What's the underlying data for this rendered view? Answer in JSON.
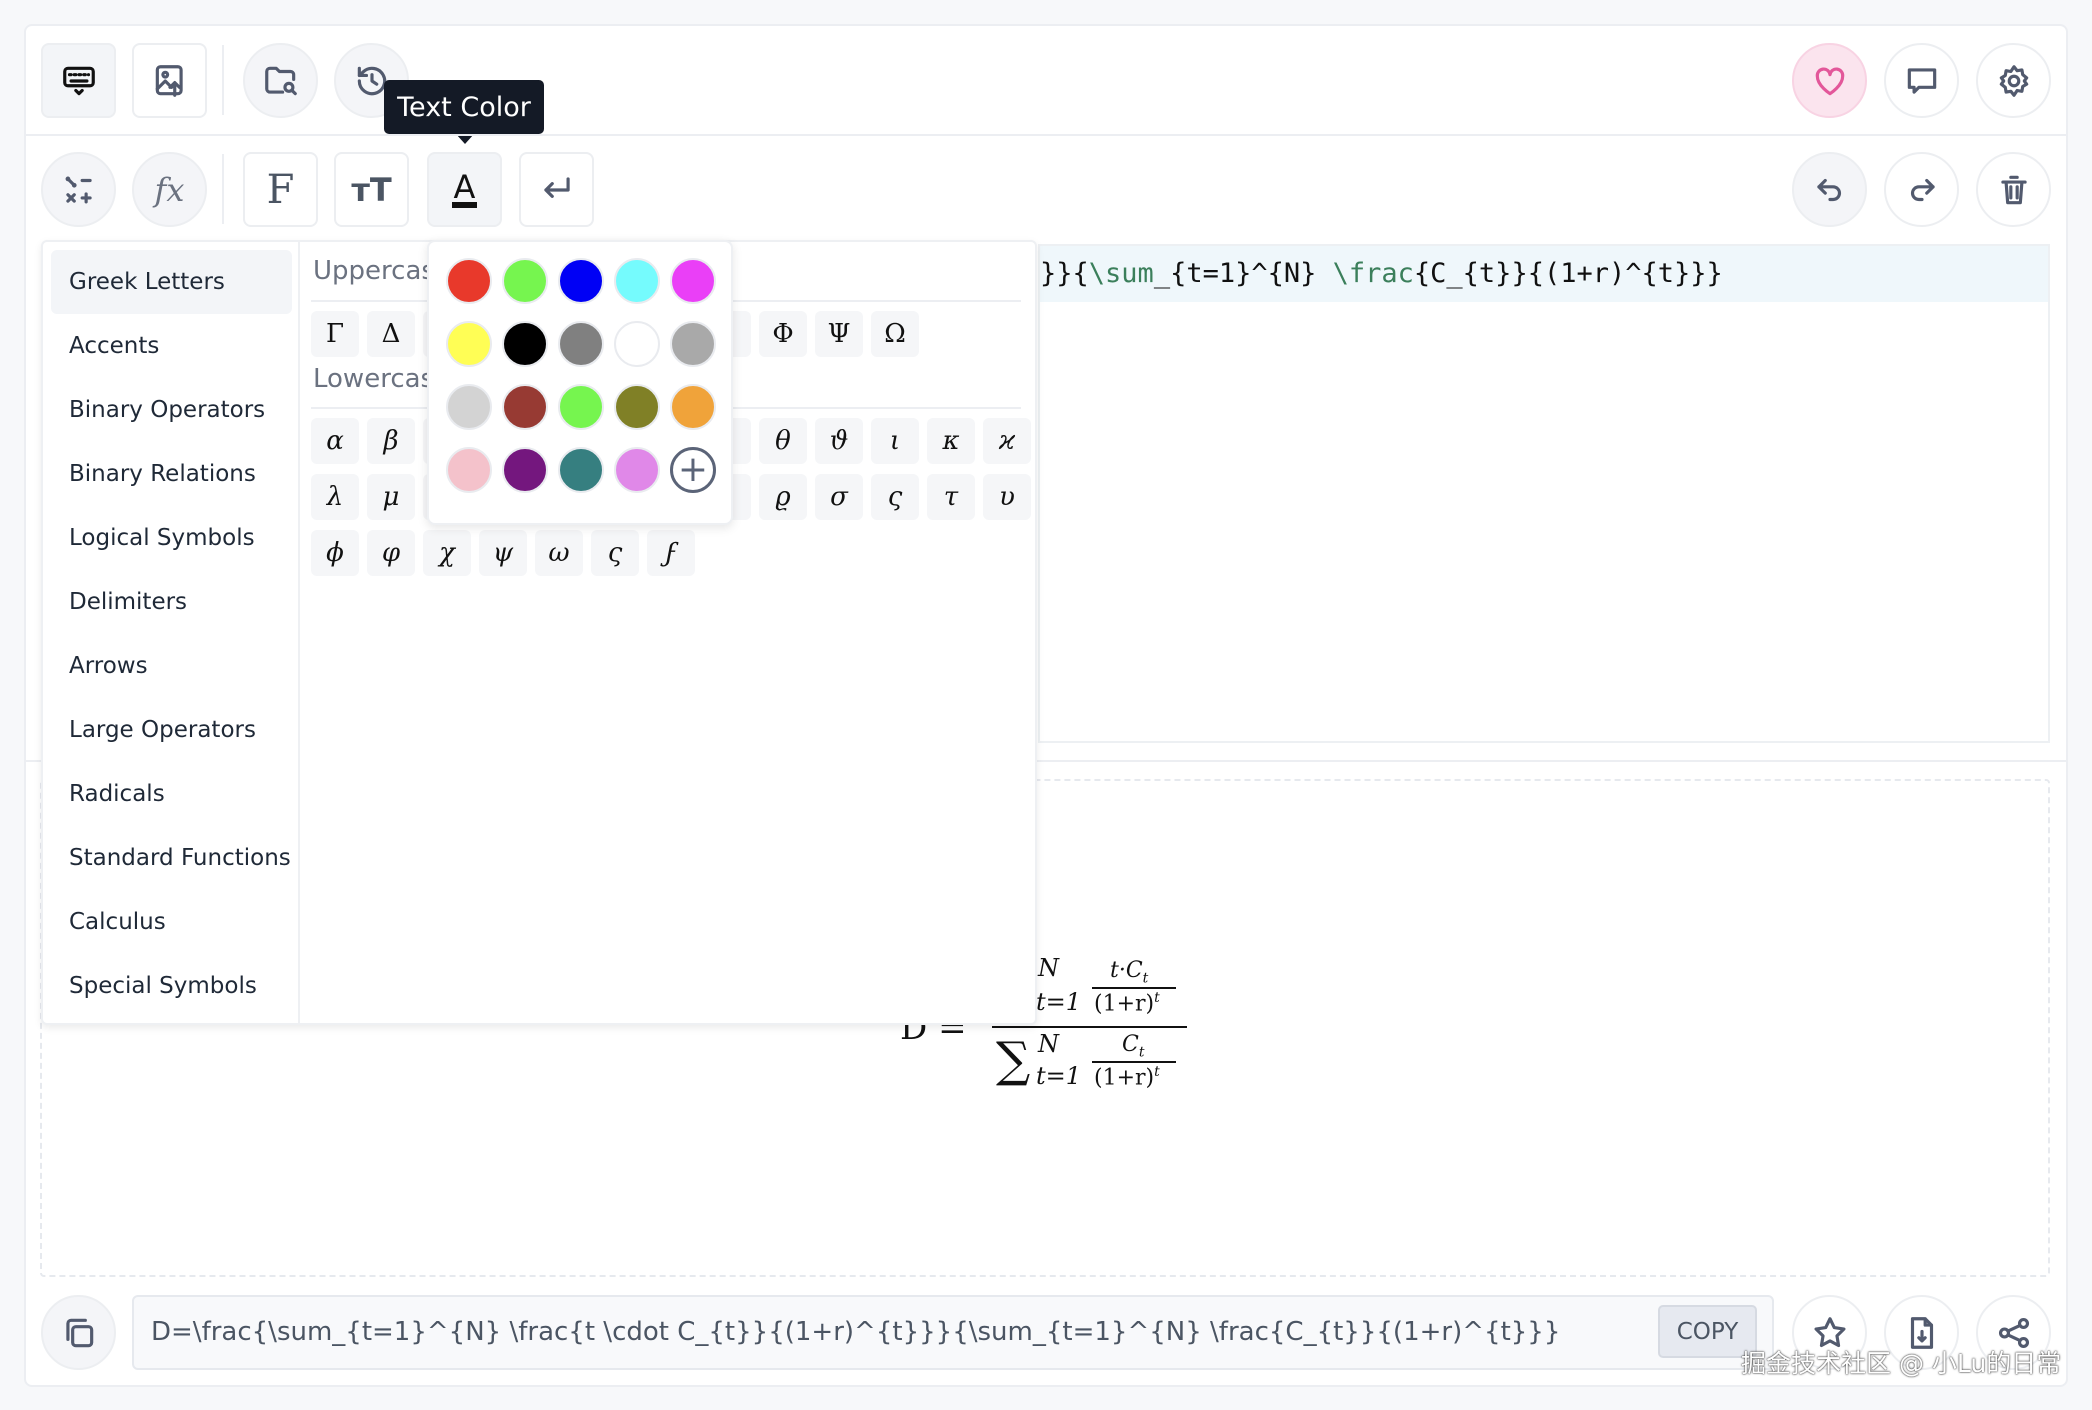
{
  "toolbar": {
    "tooltip": "Text Color",
    "row1_left": [
      "keyboard-icon",
      "image-upload-icon",
      "folder-search-icon",
      "history-icon"
    ],
    "row1_right": [
      "heart-icon",
      "comment-icon",
      "gear-icon"
    ],
    "row2_left": [
      "operators-icon",
      "function-icon",
      "font-icon",
      "text-size-icon",
      "text-color-icon",
      "line-break-icon"
    ],
    "row2_right": [
      "undo-icon",
      "redo-icon",
      "trash-icon"
    ]
  },
  "editor": {
    "line1_parts": [
      "}}{",
      "\\sum",
      "_{t=1}^{N} ",
      "\\frac",
      "{C_{t}}{(1+r)^{t}}}"
    ]
  },
  "symbols": {
    "categories": [
      "Greek Letters",
      "Accents",
      "Binary Operators",
      "Binary Relations",
      "Logical Symbols",
      "Delimiters",
      "Arrows",
      "Large Operators",
      "Radicals",
      "Standard Functions",
      "Calculus",
      "Special Symbols"
    ],
    "active_category": "Greek Letters",
    "uppercase_label": "Uppercas",
    "lowercase_label": "Lowercas",
    "uppercase": [
      "Γ",
      "Δ",
      "",
      "",
      "",
      "",
      "",
      "",
      "Φ",
      "Ψ",
      "Ω"
    ],
    "lowercase_rows": [
      [
        "α",
        "β",
        "",
        "",
        "",
        "",
        "",
        "",
        "θ",
        "ϑ",
        "ι",
        "κ",
        "ϰ"
      ],
      [
        "λ",
        "μ",
        "",
        "",
        "",
        "",
        "",
        "",
        "ϱ",
        "σ",
        "ς",
        "τ",
        "υ"
      ],
      [
        "ϕ",
        "φ",
        "χ",
        "ψ",
        "ω",
        "ς",
        "ϝ"
      ]
    ]
  },
  "color_picker": {
    "colors": [
      "#e8392b",
      "#76f54f",
      "#0000f5",
      "#75fbfd",
      "#ea3ff7",
      "#fffe55",
      "#000000",
      "#808080",
      "#ffffff",
      "#a9a9a9",
      "#d3d3d3",
      "#973a33",
      "#76f54f",
      "#808026",
      "#f0a33a",
      "#f4c2cb",
      "#74177e",
      "#367f80",
      "#e088e8"
    ],
    "add_icon": "plus-circle-icon"
  },
  "preview": {
    "lhs": "D =",
    "num_sup": "N",
    "num_sub": "t=1",
    "num_frac_top": "t·C",
    "num_frac_top_sub": "t",
    "num_frac_bot": "(1+r)",
    "num_frac_bot_sup": "t",
    "den_sum": "∑",
    "den_sup": "N",
    "den_sub": "t=1",
    "den_frac_top": "C",
    "den_frac_top_sub": "t",
    "den_frac_bot": "(1+r)",
    "den_frac_bot_sup": "t"
  },
  "bottom": {
    "latex": "D=\\frac{\\sum_{t=1}^{N} \\frac{t \\cdot C_{t}}{(1+r)^{t}}}{\\sum_{t=1}^{N} \\frac{C_{t}}{(1+r)^{t}}}",
    "copy_label": "COPY",
    "watermark": "掘金技术社区 @ 小Lu的日常"
  }
}
